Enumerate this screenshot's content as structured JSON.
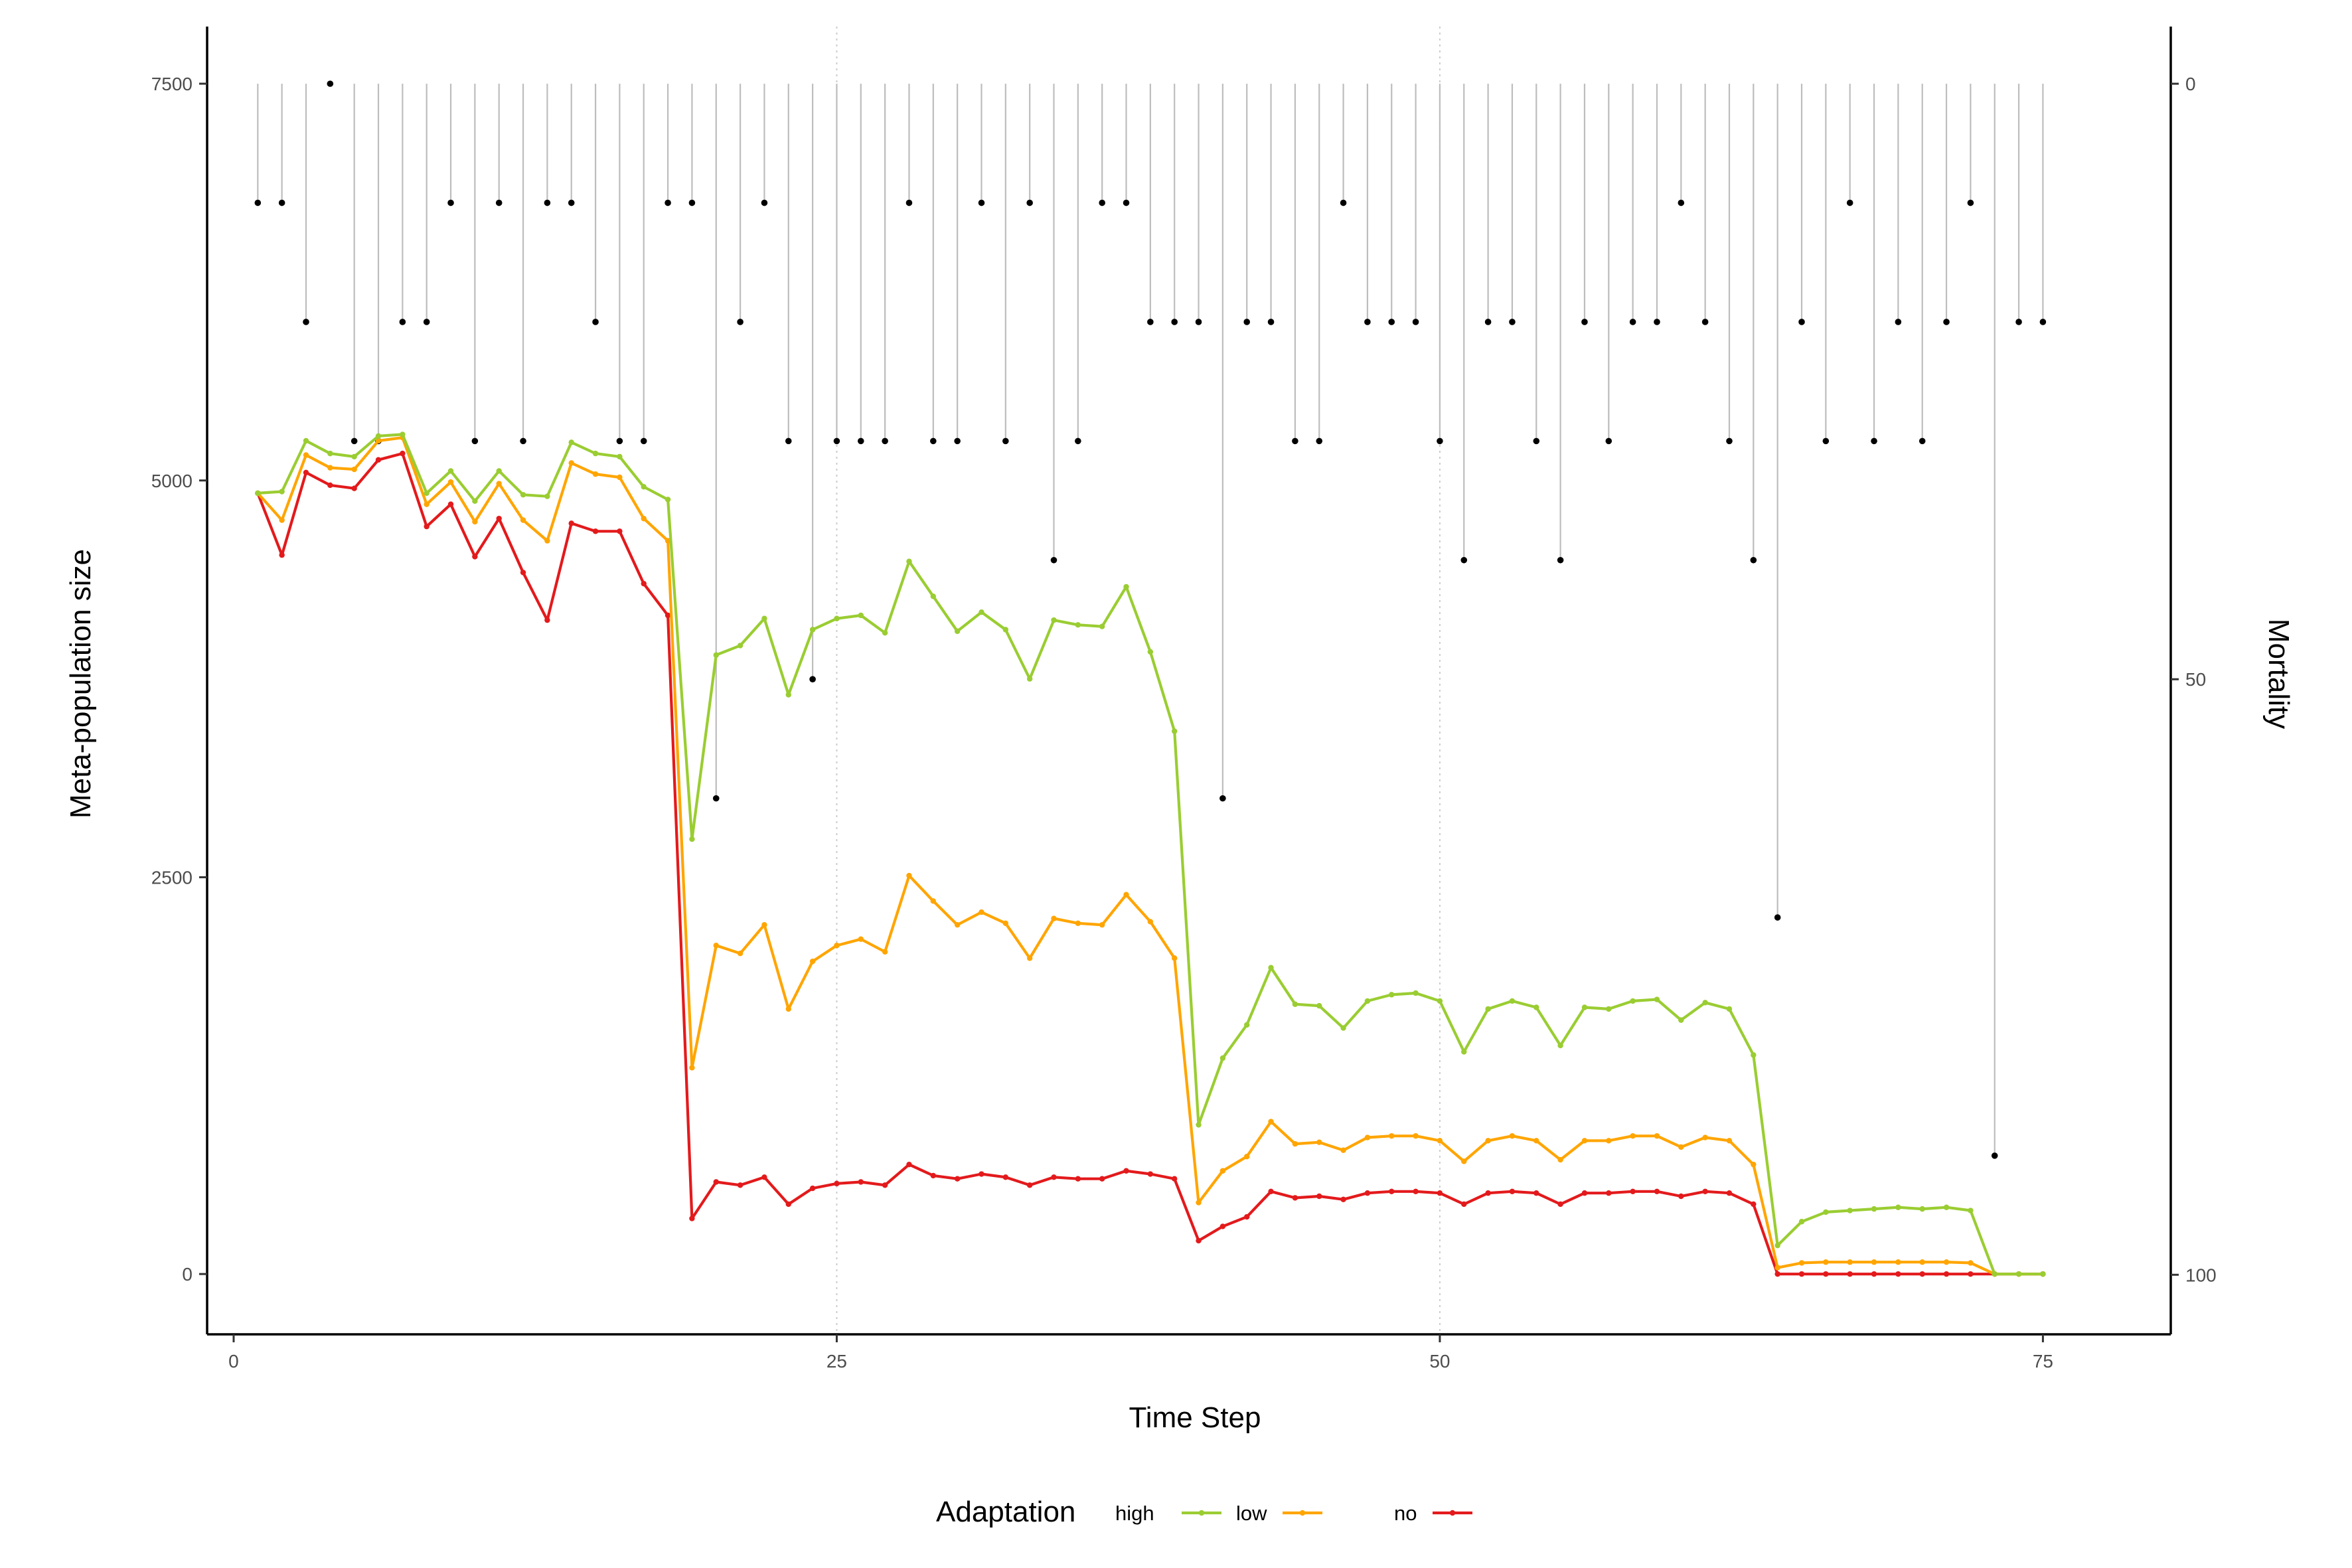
{
  "chart_data": {
    "type": "line",
    "xlabel": "Time Step",
    "ylabel": "Meta-population size",
    "y2label": "Mortality",
    "xlim": [
      -1.1,
      80.3
    ],
    "ylim": [
      -380,
      7860
    ],
    "y2lim": [
      -4.8,
      105
    ],
    "x_ticks": [
      0,
      25,
      50,
      75
    ],
    "y_ticks": [
      0,
      2500,
      5000,
      7500
    ],
    "y2_ticks": [
      0,
      50,
      100
    ],
    "y2_reversed": true,
    "grid": "vertical dotted at x = 25 and 50",
    "legend": {
      "title": "Adaptation",
      "position": "bottom"
    },
    "x": [
      1,
      2,
      3,
      4,
      5,
      6,
      7,
      8,
      9,
      10,
      11,
      12,
      13,
      14,
      15,
      16,
      17,
      18,
      19,
      20,
      21,
      22,
      23,
      24,
      25,
      26,
      27,
      28,
      29,
      30,
      31,
      32,
      33,
      34,
      35,
      36,
      37,
      38,
      39,
      40,
      41,
      42,
      43,
      44,
      45,
      46,
      47,
      48,
      49,
      50,
      51,
      52,
      53,
      54,
      55,
      56,
      57,
      58,
      59,
      60,
      61,
      62,
      63,
      64,
      65,
      66,
      67,
      68,
      69,
      70,
      71,
      72,
      73,
      74,
      75
    ],
    "series": [
      {
        "name": "high",
        "color": "#9acd32",
        "values": [
          4920,
          4930,
          5250,
          5170,
          5150,
          5280,
          5290,
          4920,
          5060,
          4870,
          5060,
          4910,
          4900,
          5240,
          5170,
          5150,
          4960,
          4880,
          2740,
          3900,
          3960,
          4130,
          3650,
          4060,
          4130,
          4150,
          4040,
          4490,
          4270,
          4050,
          4170,
          4060,
          3750,
          4120,
          4090,
          4080,
          4330,
          3920,
          3420,
          940,
          1360,
          1570,
          1930,
          1700,
          1690,
          1550,
          1720,
          1760,
          1770,
          1720,
          1400,
          1670,
          1720,
          1680,
          1440,
          1680,
          1670,
          1720,
          1730,
          1600,
          1710,
          1670,
          1380,
          180,
          330,
          390,
          400,
          410,
          420,
          410,
          420,
          400,
          0,
          0,
          0
        ]
      },
      {
        "name": "low",
        "color": "#ffa500",
        "values": [
          4920,
          4750,
          5160,
          5080,
          5070,
          5250,
          5270,
          4850,
          4990,
          4740,
          4980,
          4750,
          4620,
          5110,
          5040,
          5020,
          4760,
          4620,
          1300,
          2070,
          2020,
          2200,
          1670,
          1970,
          2070,
          2110,
          2030,
          2510,
          2350,
          2200,
          2280,
          2210,
          1990,
          2240,
          2210,
          2200,
          2390,
          2220,
          1990,
          450,
          650,
          740,
          960,
          820,
          830,
          780,
          860,
          870,
          870,
          840,
          710,
          840,
          870,
          840,
          720,
          840,
          840,
          870,
          870,
          800,
          860,
          840,
          690,
          40,
          70,
          75,
          75,
          75,
          75,
          75,
          75,
          70,
          0,
          0,
          0
        ]
      },
      {
        "name": "no",
        "color": "#e31a1c",
        "values": [
          4920,
          4530,
          5050,
          4970,
          4950,
          5130,
          5170,
          4710,
          4850,
          4520,
          4760,
          4420,
          4120,
          4730,
          4680,
          4680,
          4350,
          4150,
          350,
          580,
          560,
          610,
          440,
          540,
          570,
          580,
          560,
          690,
          620,
          600,
          630,
          610,
          560,
          610,
          600,
          600,
          650,
          630,
          600,
          210,
          300,
          360,
          520,
          480,
          490,
          470,
          510,
          520,
          520,
          510,
          440,
          510,
          520,
          510,
          440,
          510,
          510,
          520,
          520,
          490,
          520,
          510,
          440,
          0,
          0,
          0,
          0,
          0,
          0,
          0,
          0,
          0,
          0,
          0,
          0
        ]
      }
    ],
    "mortality": [
      10,
      10,
      20,
      0,
      30,
      30,
      20,
      20,
      10,
      30,
      10,
      30,
      10,
      10,
      20,
      30,
      30,
      10,
      10,
      60,
      20,
      10,
      30,
      50,
      30,
      30,
      30,
      10,
      30,
      30,
      10,
      30,
      10,
      40,
      30,
      10,
      10,
      20,
      20,
      20,
      60,
      20,
      20,
      30,
      30,
      10,
      20,
      20,
      20,
      30,
      40,
      20,
      20,
      30,
      40,
      20,
      30,
      20,
      20,
      10,
      20,
      30,
      40,
      70,
      20,
      30,
      10,
      30,
      20,
      30,
      20,
      10,
      90,
      20,
      20
    ]
  }
}
